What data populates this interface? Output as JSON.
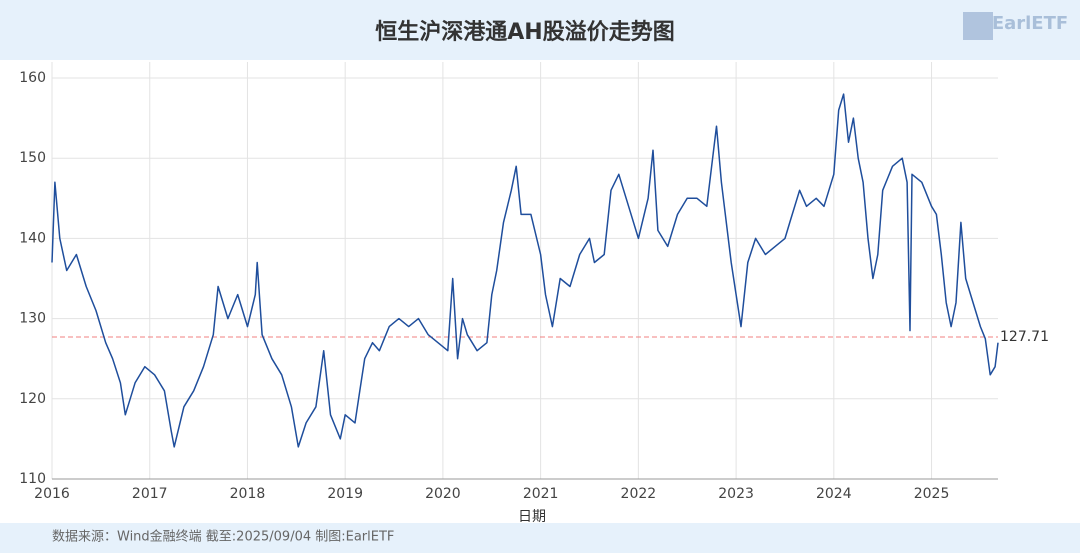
{
  "chart_data": {
    "type": "line",
    "title": "恒生沪深港通AH股溢价走势图",
    "x_label": "日期",
    "footer": "数据来源：Wind金融终端 截至:2025/09/04 制图:EarlETF",
    "watermark": "EarlETF",
    "xlim": [
      2016,
      2025.68
    ],
    "xticks": [
      2016,
      2017,
      2018,
      2019,
      2020,
      2021,
      2022,
      2023,
      2024,
      2025
    ],
    "ylim": [
      110,
      162
    ],
    "yticks": [
      110,
      120,
      130,
      140,
      150,
      160
    ],
    "grid": true,
    "reference_line": {
      "value": 127.71,
      "label": "127.71",
      "color": "#f08080"
    },
    "series": [
      {
        "name": "AH股溢价",
        "color": "#1f4e9c",
        "x": [
          2016.0,
          2016.03,
          2016.08,
          2016.15,
          2016.25,
          2016.35,
          2016.45,
          2016.55,
          2016.62,
          2016.7,
          2016.75,
          2016.85,
          2016.95,
          2017.05,
          2017.15,
          2017.22,
          2017.25,
          2017.35,
          2017.45,
          2017.55,
          2017.65,
          2017.7,
          2017.8,
          2017.9,
          2018.0,
          2018.08,
          2018.1,
          2018.15,
          2018.25,
          2018.35,
          2018.45,
          2018.52,
          2018.6,
          2018.7,
          2018.78,
          2018.85,
          2018.95,
          2019.0,
          2019.1,
          2019.15,
          2019.2,
          2019.28,
          2019.35,
          2019.45,
          2019.55,
          2019.65,
          2019.75,
          2019.85,
          2019.95,
          2020.05,
          2020.1,
          2020.15,
          2020.2,
          2020.25,
          2020.35,
          2020.45,
          2020.5,
          2020.55,
          2020.62,
          2020.7,
          2020.75,
          2020.8,
          2020.9,
          2021.0,
          2021.05,
          2021.12,
          2021.2,
          2021.3,
          2021.4,
          2021.5,
          2021.55,
          2021.65,
          2021.72,
          2021.8,
          2021.9,
          2022.0,
          2022.1,
          2022.15,
          2022.2,
          2022.3,
          2022.4,
          2022.5,
          2022.6,
          2022.7,
          2022.8,
          2022.85,
          2022.95,
          2023.0,
          2023.05,
          2023.12,
          2023.2,
          2023.3,
          2023.4,
          2023.5,
          2023.55,
          2023.65,
          2023.72,
          2023.82,
          2023.9,
          2024.0,
          2024.05,
          2024.1,
          2024.15,
          2024.2,
          2024.25,
          2024.3,
          2024.35,
          2024.4,
          2024.45,
          2024.5,
          2024.6,
          2024.7,
          2024.75,
          2024.78,
          2024.8,
          2024.9,
          2025.0,
          2025.05,
          2025.1,
          2025.15,
          2025.2,
          2025.25,
          2025.3,
          2025.35,
          2025.4,
          2025.45,
          2025.5,
          2025.55,
          2025.6,
          2025.65,
          2025.68
        ],
        "values": [
          137,
          147,
          140,
          136,
          138,
          134,
          131,
          127,
          125,
          122,
          118,
          122,
          124,
          123,
          121,
          116,
          114,
          119,
          121,
          124,
          128,
          134,
          130,
          133,
          129,
          133,
          137,
          128,
          125,
          123,
          119,
          114,
          117,
          119,
          126,
          118,
          115,
          118,
          117,
          121,
          125,
          127,
          126,
          129,
          130,
          129,
          130,
          128,
          127,
          126,
          135,
          125,
          130,
          128,
          126,
          127,
          133,
          136,
          142,
          146,
          149,
          143,
          143,
          138,
          133,
          129,
          135,
          134,
          138,
          140,
          137,
          138,
          146,
          148,
          144,
          140,
          145,
          151,
          141,
          139,
          143,
          145,
          145,
          144,
          154,
          147,
          137,
          133,
          129,
          137,
          140,
          138,
          139,
          140,
          142,
          146,
          144,
          145,
          144,
          148,
          156,
          158,
          152,
          155,
          150,
          147,
          140,
          135,
          138,
          146,
          149,
          150,
          147,
          128.5,
          148,
          147,
          144,
          143,
          138,
          132,
          129,
          132,
          142,
          135,
          133,
          131,
          129,
          127.5,
          123,
          124,
          127
        ]
      }
    ]
  }
}
